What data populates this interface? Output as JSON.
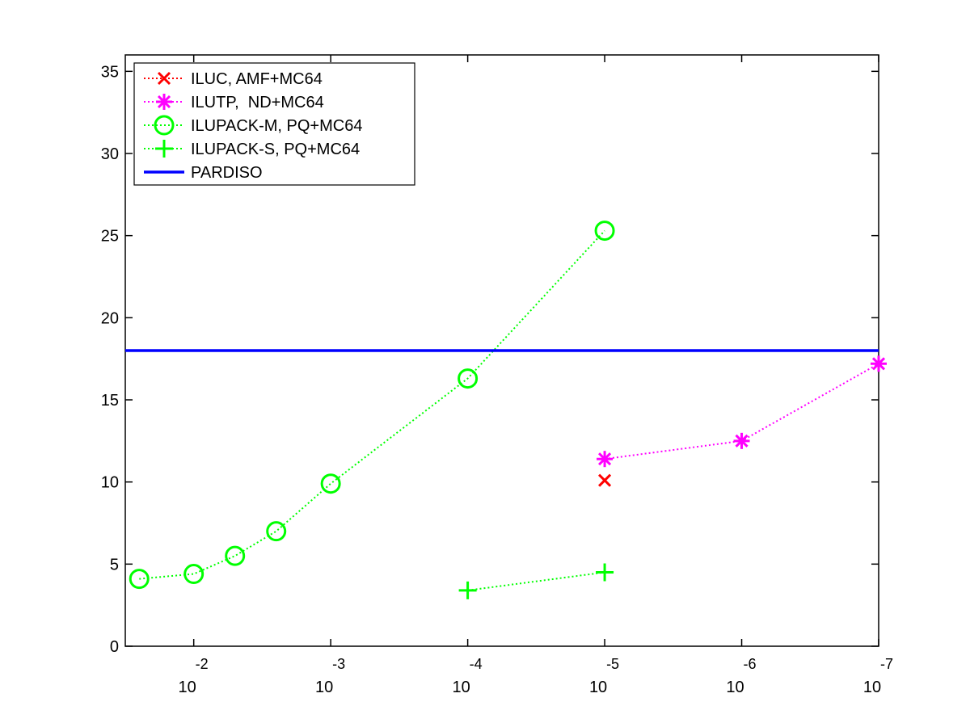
{
  "chart_data": {
    "type": "line",
    "title": "",
    "xlabel": "",
    "ylabel": "",
    "x_scale": "log",
    "x_reversed": true,
    "xlim": [
      0.0316,
      1e-07
    ],
    "ylim": [
      0,
      36
    ],
    "x_ticks": [
      {
        "value": 0.01,
        "base": "10",
        "exp": "-2"
      },
      {
        "value": 0.001,
        "base": "10",
        "exp": "-3"
      },
      {
        "value": 0.0001,
        "base": "10",
        "exp": "-4"
      },
      {
        "value": 1e-05,
        "base": "10",
        "exp": "-5"
      },
      {
        "value": 1e-06,
        "base": "10",
        "exp": "-6"
      },
      {
        "value": 1e-07,
        "base": "10",
        "exp": "-7"
      }
    ],
    "y_ticks": [
      0,
      5,
      10,
      15,
      20,
      25,
      30,
      35
    ],
    "grid": false,
    "legend_position": "top-left",
    "series": [
      {
        "name": "ILUC, AMF+MC64",
        "color": "#ff0000",
        "marker": "x",
        "line_style": "dotted",
        "points": [
          {
            "x": 1e-05,
            "y": 10.1
          }
        ]
      },
      {
        "name": "ILUTP,  ND+MC64",
        "color": "#ff00ff",
        "marker": "asterisk",
        "line_style": "dotted",
        "points": [
          {
            "x": 1e-05,
            "y": 11.4
          },
          {
            "x": 1e-06,
            "y": 12.5
          },
          {
            "x": 1e-07,
            "y": 17.2
          }
        ]
      },
      {
        "name": "ILUPACK-M, PQ+MC64",
        "color": "#00ff00",
        "marker": "circle",
        "line_style": "dotted",
        "points": [
          {
            "x": 0.025,
            "y": 4.1
          },
          {
            "x": 0.01,
            "y": 4.4
          },
          {
            "x": 0.005,
            "y": 5.5
          },
          {
            "x": 0.0025,
            "y": 7.0
          },
          {
            "x": 0.001,
            "y": 9.9
          },
          {
            "x": 0.0001,
            "y": 16.3
          },
          {
            "x": 1e-05,
            "y": 25.3
          }
        ]
      },
      {
        "name": "ILUPACK-S, PQ+MC64",
        "color": "#00ff00",
        "marker": "plus",
        "line_style": "dotted",
        "points": [
          {
            "x": 0.0001,
            "y": 3.4
          },
          {
            "x": 1e-05,
            "y": 4.5
          }
        ]
      },
      {
        "name": "PARDISO",
        "color": "#0000ff",
        "marker": "none",
        "line_style": "solid",
        "points": [
          {
            "x": 0.0316,
            "y": 18.0
          },
          {
            "x": 1e-07,
            "y": 18.0
          }
        ]
      }
    ]
  }
}
